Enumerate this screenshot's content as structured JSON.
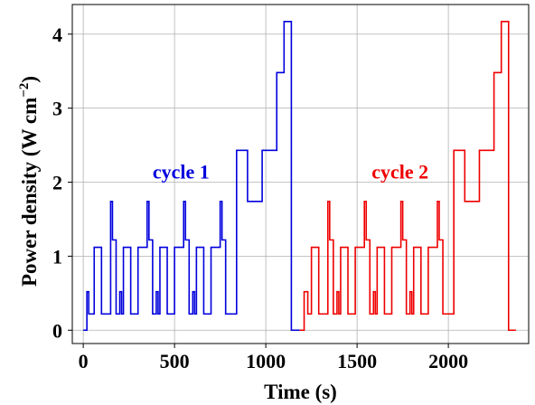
{
  "chart_data": {
    "type": "line",
    "title": "",
    "xlabel": "Time (s)",
    "ylabel_main": "Power density (W cm",
    "ylabel_sup": "−2",
    "ylabel_close": ")",
    "xlim": [
      -60,
      2440
    ],
    "ylim": [
      -0.18,
      4.4
    ],
    "xticks": [
      0,
      500,
      1000,
      1500,
      2000
    ],
    "yticks": [
      0,
      1,
      2,
      3,
      4
    ],
    "grid": true,
    "legend": "none",
    "annotations": [
      {
        "text": "cycle 1",
        "x": 380,
        "y": 2.05,
        "color": "#0000dd"
      },
      {
        "text": "cycle 2",
        "x": 1580,
        "y": 2.05,
        "color": "#ee0000"
      }
    ],
    "series": [
      {
        "color": "#0000dd",
        "step": "post",
        "x": [
          0,
          20,
          30,
          60,
          100,
          150,
          160,
          180,
          200,
          210,
          220,
          260,
          300,
          350,
          360,
          380,
          400,
          410,
          420,
          460,
          500,
          550,
          560,
          580,
          600,
          610,
          620,
          660,
          700,
          750,
          760,
          780,
          790,
          840,
          900,
          980,
          1060,
          1100,
          1140,
          1185
        ],
        "y": [
          0,
          0.52,
          0.22,
          1.12,
          0.22,
          1.74,
          1.22,
          0.22,
          0.52,
          0.22,
          1.12,
          0.22,
          1.12,
          1.74,
          1.22,
          0.22,
          0.52,
          0.22,
          1.12,
          0.22,
          1.12,
          1.74,
          1.22,
          0.22,
          0.52,
          0.22,
          1.12,
          0.22,
          1.12,
          1.74,
          1.22,
          0.22,
          0.22,
          2.43,
          1.74,
          2.43,
          3.48,
          4.17,
          0,
          0
        ]
      },
      {
        "color": "#ee0000",
        "step": "post",
        "x": [
          1185,
          1210,
          1230,
          1250,
          1290,
          1340,
          1350,
          1370,
          1390,
          1400,
          1410,
          1450,
          1490,
          1540,
          1550,
          1570,
          1590,
          1600,
          1610,
          1650,
          1690,
          1740,
          1750,
          1770,
          1790,
          1800,
          1810,
          1850,
          1890,
          1940,
          1950,
          1970,
          1980,
          2030,
          2090,
          2170,
          2250,
          2290,
          2330,
          2370
        ],
        "y": [
          0,
          0.52,
          0.22,
          1.12,
          0.22,
          1.74,
          1.22,
          0.22,
          0.52,
          0.22,
          1.12,
          0.22,
          1.12,
          1.74,
          1.22,
          0.22,
          0.52,
          0.22,
          1.12,
          0.22,
          1.12,
          1.74,
          1.22,
          0.22,
          0.52,
          0.22,
          1.12,
          0.22,
          1.12,
          1.74,
          1.22,
          0.22,
          0.22,
          2.43,
          1.74,
          2.43,
          3.48,
          4.17,
          0,
          0
        ]
      }
    ]
  }
}
